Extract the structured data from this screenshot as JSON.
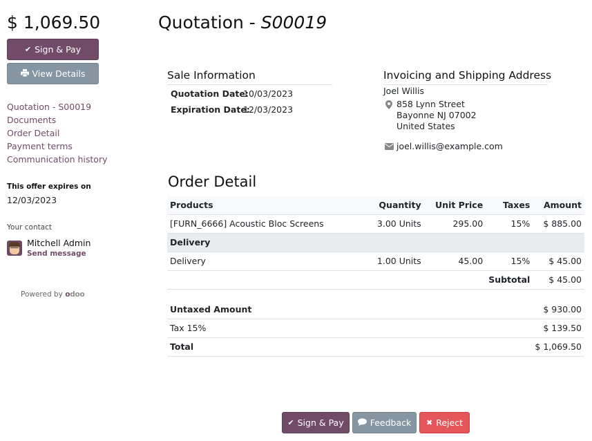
{
  "sidebar": {
    "total_amount": "$ 1,069.50",
    "sign_pay_label": "Sign & Pay",
    "view_details_label": "View Details",
    "nav": [
      "Quotation - S00019",
      "Documents",
      "Order Detail",
      "Payment terms",
      "Communication history"
    ],
    "expires_label": "This offer expires on",
    "expires_date": "12/03/2023",
    "contact_label": "Your contact",
    "contact_name": "Mitchell Admin",
    "send_message": "Send message",
    "powered_by": "Powered by",
    "brand_o1": "o",
    "brand_rest": "doo"
  },
  "header": {
    "title_prefix": "Quotation - ",
    "title_number": "S00019"
  },
  "sale_info": {
    "heading": "Sale Information",
    "quotation_date_label": "Quotation Date:",
    "quotation_date": "10/03/2023",
    "expiration_date_label": "Expiration Date:",
    "expiration_date": "12/03/2023"
  },
  "address": {
    "heading": "Invoicing and Shipping Address",
    "name": "Joel Willis",
    "street": "858 Lynn Street",
    "city": "Bayonne NJ 07002",
    "country": "United States",
    "email": "joel.willis@example.com"
  },
  "order": {
    "heading": "Order Detail",
    "columns": {
      "products": "Products",
      "quantity": "Quantity",
      "unit_price": "Unit Price",
      "taxes": "Taxes",
      "amount": "Amount"
    },
    "lines": [
      {
        "product": "[FURN_6666] Acoustic Bloc Screens",
        "quantity": "3.00 Units",
        "unit_price": "295.00",
        "taxes": "15%",
        "amount": "$ 885.00"
      }
    ],
    "section": "Delivery",
    "section_lines": [
      {
        "product": "Delivery",
        "quantity": "1.00 Units",
        "unit_price": "45.00",
        "taxes": "15%",
        "amount": "$ 45.00"
      }
    ],
    "subtotal_label": "Subtotal",
    "subtotal": "$ 45.00"
  },
  "totals": {
    "untaxed_label": "Untaxed Amount",
    "untaxed": "$ 930.00",
    "tax_label": "Tax 15%",
    "tax": "$ 139.50",
    "total_label": "Total",
    "total": "$ 1,069.50"
  },
  "actions": {
    "sign_pay": "Sign & Pay",
    "feedback": "Feedback",
    "reject": "Reject"
  },
  "colors": {
    "primary": "#714b67",
    "secondary": "#8595a2",
    "danger": "#e4565a"
  }
}
